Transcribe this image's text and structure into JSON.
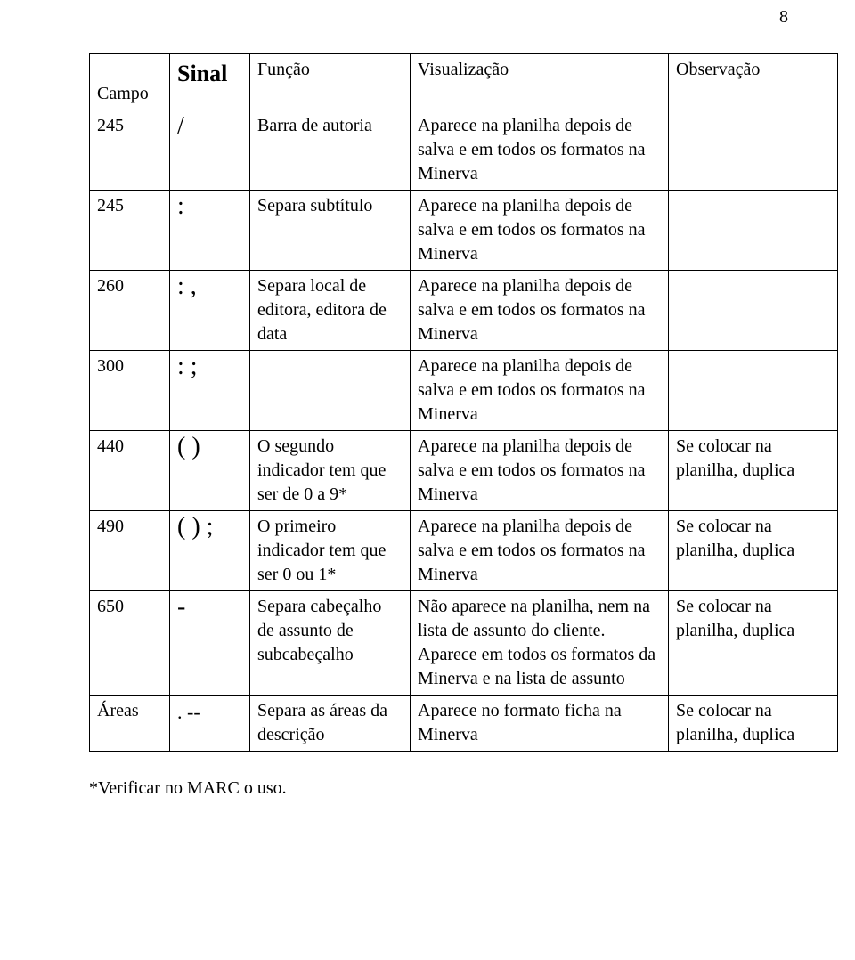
{
  "page_number": "8",
  "columns": {
    "campo": "Campo",
    "sinal": "Sinal",
    "funcao": "Função",
    "viz": "Visualização",
    "obs": "Observação"
  },
  "rows": [
    {
      "campo": "245",
      "sinal": "/",
      "funcao": "Barra de autoria",
      "viz": "Aparece na planilha depois de salva e em todos os formatos na Minerva",
      "obs": ""
    },
    {
      "campo": "245",
      "sinal": ":",
      "funcao": "Separa subtítulo",
      "viz": "Aparece na planilha depois de salva e em todos os formatos na Minerva",
      "obs": ""
    },
    {
      "campo": "260",
      "sinal": ": ,",
      "funcao": "Separa local de editora, editora de data",
      "viz": "Aparece na planilha depois de salva e em todos os formatos na Minerva",
      "obs": ""
    },
    {
      "campo": "300",
      "sinal": ": ;",
      "funcao": "",
      "viz": "Aparece na planilha depois de salva e em todos os formatos na Minerva",
      "obs": ""
    },
    {
      "campo": "440",
      "sinal": "( )",
      "funcao": "O segundo indicador tem que ser de 0 a 9*",
      "viz": "Aparece na planilha depois de salva e em todos os formatos na Minerva",
      "obs": "Se colocar na planilha, duplica"
    },
    {
      "campo": "490",
      "sinal": "( ) ;",
      "funcao": "O primeiro indicador tem que ser 0 ou 1*",
      "viz": "Aparece na planilha depois de salva e em todos os formatos na Minerva",
      "obs": "Se colocar na planilha, duplica"
    },
    {
      "campo": "650",
      "sinal": "-",
      "funcao": "Separa cabeçalho de assunto de subcabeçalho",
      "viz": "Não aparece na planilha, nem na lista de assunto do cliente. Aparece em todos os formatos da Minerva e na lista de assunto",
      "obs": "Se colocar na planilha, duplica"
    },
    {
      "campo": "Áreas",
      "sinal": ". --",
      "funcao": "Separa as áreas da descrição",
      "viz": "Aparece no formato ficha na Minerva",
      "obs": "Se colocar na planilha, duplica"
    }
  ],
  "footnote": "*Verificar no MARC o uso."
}
